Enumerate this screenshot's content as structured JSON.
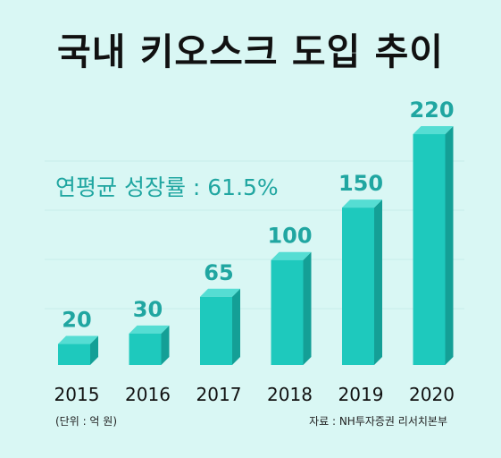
{
  "chart_data": {
    "type": "bar",
    "title": "국내 키오스크 도입 추이",
    "categories": [
      "2015",
      "2016",
      "2017",
      "2018",
      "2019",
      "2020"
    ],
    "values": [
      20,
      30,
      65,
      100,
      150,
      220
    ],
    "data_labels": [
      "20",
      "30",
      "65",
      "100",
      "150",
      "220"
    ],
    "annotation": "연평균 성장률 : 61.5%",
    "unit_note": "(단위 : 억 원)",
    "source_note": "자료 : NH투자증권 리서치본부",
    "grid": true,
    "legend": "none",
    "xlabel": "",
    "ylabel": ""
  },
  "colors": {
    "background": "#d9f7f4",
    "bar_front": "#1ec9bd",
    "bar_side": "#149f96",
    "bar_top": "#55ddd3",
    "label_color": "#20a6a1",
    "gridline": "#c8ecea"
  }
}
